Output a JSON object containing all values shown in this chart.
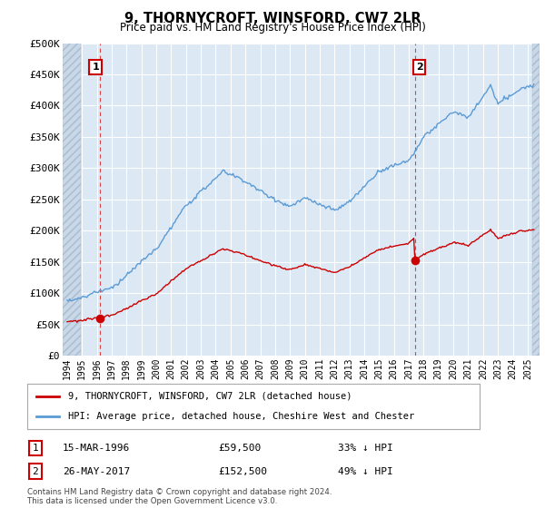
{
  "title": "9, THORNYCROFT, WINSFORD, CW7 2LR",
  "subtitle": "Price paid vs. HM Land Registry's House Price Index (HPI)",
  "ylabel_ticks": [
    "£0",
    "£50K",
    "£100K",
    "£150K",
    "£200K",
    "£250K",
    "£300K",
    "£350K",
    "£400K",
    "£450K",
    "£500K"
  ],
  "ytick_values": [
    0,
    50000,
    100000,
    150000,
    200000,
    250000,
    300000,
    350000,
    400000,
    450000,
    500000
  ],
  "ylim": [
    0,
    500000
  ],
  "xlim_start": 1993.7,
  "xlim_end": 2025.8,
  "background_color": "#ffffff",
  "plot_bg_color": "#dce9f5",
  "grid_color": "#ffffff",
  "hatch_color": "#c8d8e8",
  "sale1": {
    "year": 1996.21,
    "price": 59500,
    "label": "1",
    "date": "15-MAR-1996",
    "hpi_diff": "33% ↓ HPI"
  },
  "sale2": {
    "year": 2017.4,
    "price": 152500,
    "label": "2",
    "date": "26-MAY-2017",
    "hpi_diff": "49% ↓ HPI"
  },
  "hpi_line_color": "#5b9bd5",
  "sale_line_color": "#cc0000",
  "vline_color": "#dd4444",
  "legend_label_sale": "9, THORNYCROFT, WINSFORD, CW7 2LR (detached house)",
  "legend_label_hpi": "HPI: Average price, detached house, Cheshire West and Chester",
  "footer": "Contains HM Land Registry data © Crown copyright and database right 2024.\nThis data is licensed under the Open Government Licence v3.0.",
  "xtick_years": [
    1994,
    1995,
    1996,
    1997,
    1998,
    1999,
    2000,
    2001,
    2002,
    2003,
    2004,
    2005,
    2006,
    2007,
    2008,
    2009,
    2010,
    2011,
    2012,
    2013,
    2014,
    2015,
    2016,
    2017,
    2018,
    2019,
    2020,
    2021,
    2022,
    2023,
    2024,
    2025
  ]
}
